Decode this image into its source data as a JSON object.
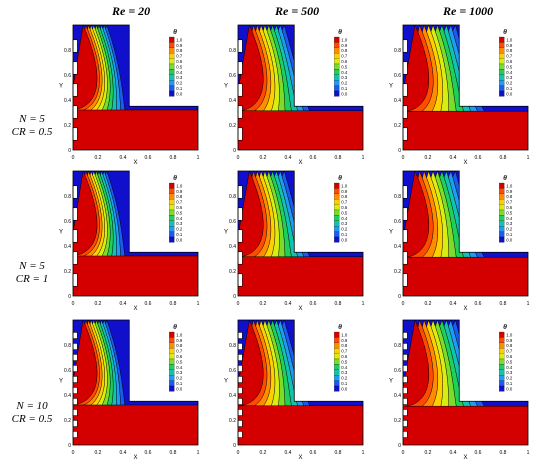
{
  "columns": [
    "Re = 20",
    "Re = 500",
    "Re = 1000"
  ],
  "rows": [
    {
      "n": "N = 5",
      "cr": "CR = 0.5"
    },
    {
      "n": "N = 5",
      "cr": "CR = 1"
    },
    {
      "n": "N = 10",
      "cr": "CR = 0.5"
    }
  ],
  "axes": {
    "x_label": "X",
    "y_label": "Y",
    "x_ticks": [
      "0",
      "0.2",
      "0.4",
      "0.6",
      "0.8",
      "1"
    ],
    "y_ticks": [
      "0",
      "0.2",
      "0.4",
      "0.6",
      "0.8"
    ]
  },
  "legend": {
    "title": "θ",
    "levels": [
      "1.0",
      "0.9",
      "0.8",
      "0.7",
      "0.6",
      "0.5",
      "0.4",
      "0.3",
      "0.2",
      "0.1",
      "0.0"
    ],
    "colors": [
      "#d40000",
      "#ff4a00",
      "#ff8c00",
      "#ffd000",
      "#d8ee10",
      "#7ddc2a",
      "#1ed05a",
      "#12c2b0",
      "#1e9cf0",
      "#1a5cf0",
      "#1010cc"
    ]
  }
}
